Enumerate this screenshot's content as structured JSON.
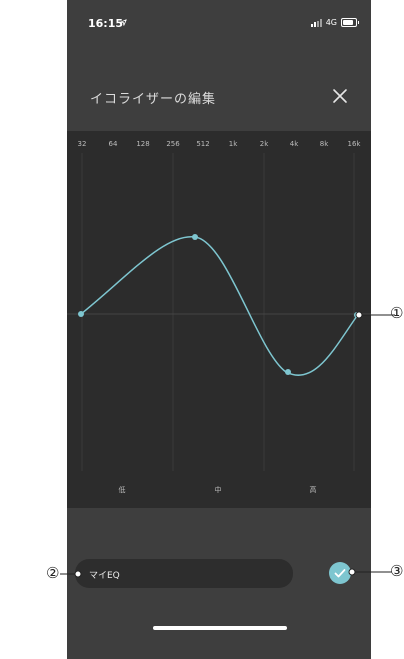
{
  "status_bar": {
    "time": "16:15",
    "network": "4G"
  },
  "header": {
    "title": "イコライザーの編集"
  },
  "equalizer": {
    "frequencies": [
      "32",
      "64",
      "128",
      "256",
      "512",
      "1k",
      "2k",
      "4k",
      "8k",
      "16k"
    ],
    "bands": [
      "低",
      "中",
      "高"
    ]
  },
  "eq_name": {
    "value": "マイEQ"
  },
  "callouts": {
    "one": "①",
    "two": "②",
    "three": "③"
  },
  "colors": {
    "accent": "#7ec6d0",
    "background": "#3e3e3e",
    "panel": "#2c2c2c"
  },
  "icons": {
    "close": "close-icon",
    "save": "check-icon",
    "location": "location-arrow-icon"
  }
}
